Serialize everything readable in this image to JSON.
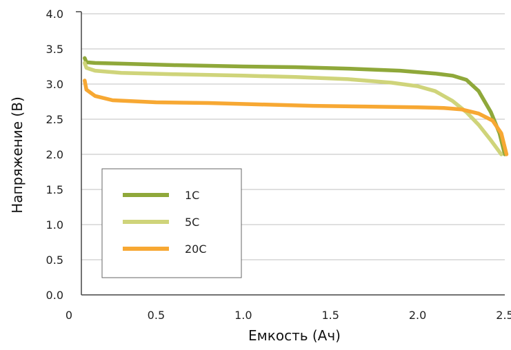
{
  "chart_data": {
    "type": "line",
    "title": "",
    "xlabel": "Емкость (Ач)",
    "ylabel": "Напряжение (В)",
    "xlim": [
      0,
      2.5
    ],
    "ylim": [
      0,
      4.0
    ],
    "x_ticks": [
      "0",
      "0.5",
      "1.0",
      "1.5",
      "2.0",
      "2.5"
    ],
    "y_ticks": [
      "0.0",
      "0.5",
      "1.0",
      "1.5",
      "2.0",
      "2.5",
      "3.0",
      "3.5",
      "4.0"
    ],
    "grid": "horizontal",
    "legend_placement": "bottom-left",
    "series": [
      {
        "name": "1C",
        "color": "#8fa83a",
        "points": [
          [
            0.09,
            3.37
          ],
          [
            0.1,
            3.31
          ],
          [
            0.15,
            3.3
          ],
          [
            0.3,
            3.29
          ],
          [
            0.6,
            3.27
          ],
          [
            1.0,
            3.25
          ],
          [
            1.3,
            3.24
          ],
          [
            1.6,
            3.22
          ],
          [
            1.9,
            3.19
          ],
          [
            2.1,
            3.15
          ],
          [
            2.2,
            3.12
          ],
          [
            2.28,
            3.06
          ],
          [
            2.35,
            2.9
          ],
          [
            2.42,
            2.6
          ],
          [
            2.47,
            2.3
          ],
          [
            2.5,
            2.0
          ]
        ]
      },
      {
        "name": "5C",
        "color": "#cfd47a",
        "points": [
          [
            0.09,
            3.3
          ],
          [
            0.1,
            3.23
          ],
          [
            0.15,
            3.19
          ],
          [
            0.3,
            3.16
          ],
          [
            0.6,
            3.14
          ],
          [
            1.0,
            3.12
          ],
          [
            1.3,
            3.1
          ],
          [
            1.6,
            3.07
          ],
          [
            1.85,
            3.02
          ],
          [
            2.0,
            2.97
          ],
          [
            2.1,
            2.9
          ],
          [
            2.2,
            2.76
          ],
          [
            2.28,
            2.6
          ],
          [
            2.35,
            2.42
          ],
          [
            2.42,
            2.2
          ],
          [
            2.48,
            2.0
          ]
        ]
      },
      {
        "name": "20C",
        "color": "#f7a833",
        "points": [
          [
            0.09,
            3.05
          ],
          [
            0.1,
            2.92
          ],
          [
            0.15,
            2.83
          ],
          [
            0.25,
            2.77
          ],
          [
            0.5,
            2.74
          ],
          [
            0.8,
            2.73
          ],
          [
            1.1,
            2.71
          ],
          [
            1.4,
            2.69
          ],
          [
            1.7,
            2.68
          ],
          [
            2.0,
            2.67
          ],
          [
            2.15,
            2.66
          ],
          [
            2.25,
            2.64
          ],
          [
            2.35,
            2.58
          ],
          [
            2.43,
            2.48
          ],
          [
            2.48,
            2.3
          ],
          [
            2.51,
            2.0
          ]
        ]
      }
    ]
  }
}
